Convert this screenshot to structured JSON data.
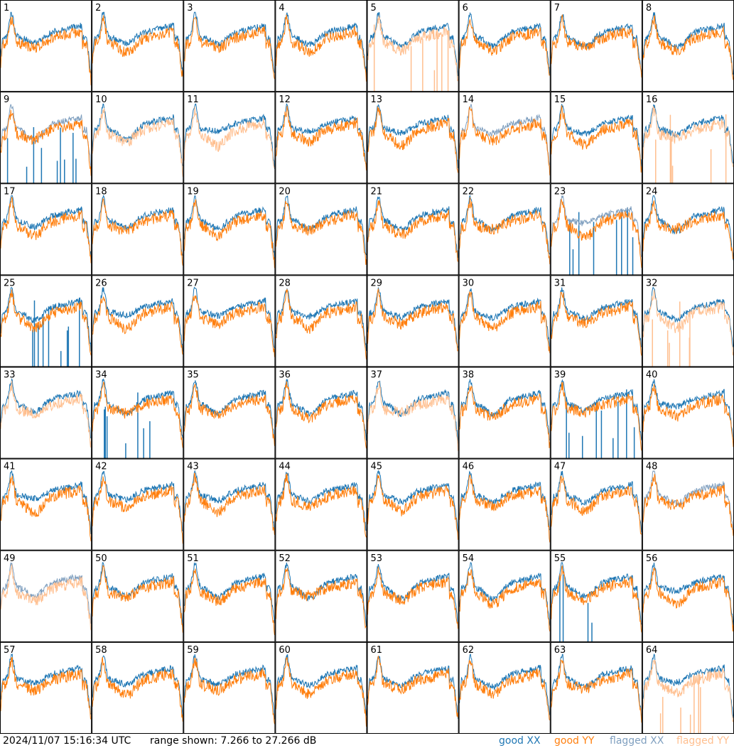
{
  "chart_data": {
    "type": "line",
    "panel_labels": [
      "1",
      "2",
      "3",
      "4",
      "5",
      "6",
      "7",
      "8",
      "9",
      "10",
      "11",
      "12",
      "13",
      "14",
      "15",
      "16",
      "17",
      "18",
      "19",
      "20",
      "21",
      "22",
      "23",
      "24",
      "25",
      "26",
      "27",
      "28",
      "29",
      "30",
      "31",
      "32",
      "33",
      "34",
      "35",
      "36",
      "37",
      "38",
      "39",
      "40",
      "41",
      "42",
      "43",
      "44",
      "45",
      "46",
      "47",
      "48",
      "49",
      "50",
      "51",
      "52",
      "53",
      "54",
      "55",
      "56",
      "57",
      "58",
      "59",
      "60",
      "61",
      "62",
      "63",
      "64"
    ],
    "grid": {
      "rows": 8,
      "cols": 8
    },
    "ylim": [
      7.266,
      27.266
    ],
    "series": [
      {
        "name": "good XX",
        "color": "#1f77b4"
      },
      {
        "name": "good YY",
        "color": "#ff7f0e"
      },
      {
        "name": "flagged XX",
        "color": "#7f9fbf"
      },
      {
        "name": "flagged YY",
        "color": "#ffbf8f"
      }
    ],
    "flagged_xx_panels": [
      9,
      14,
      23,
      48,
      49
    ],
    "flagged_yy_panels": [
      5,
      10,
      11,
      16,
      32,
      33,
      37,
      49,
      64
    ],
    "spike_panels": [
      5,
      9,
      16,
      23,
      25,
      32,
      34,
      39,
      55,
      64
    ]
  },
  "footer": {
    "timestamp": "2024/11/07 15:16:34 UTC",
    "range_text": "range shown: 7.266 to 27.266 dB",
    "legend": {
      "good_xx": "good XX",
      "good_yy": "good YY",
      "flagged_xx": "flagged XX",
      "flagged_yy": "flagged YY"
    }
  }
}
